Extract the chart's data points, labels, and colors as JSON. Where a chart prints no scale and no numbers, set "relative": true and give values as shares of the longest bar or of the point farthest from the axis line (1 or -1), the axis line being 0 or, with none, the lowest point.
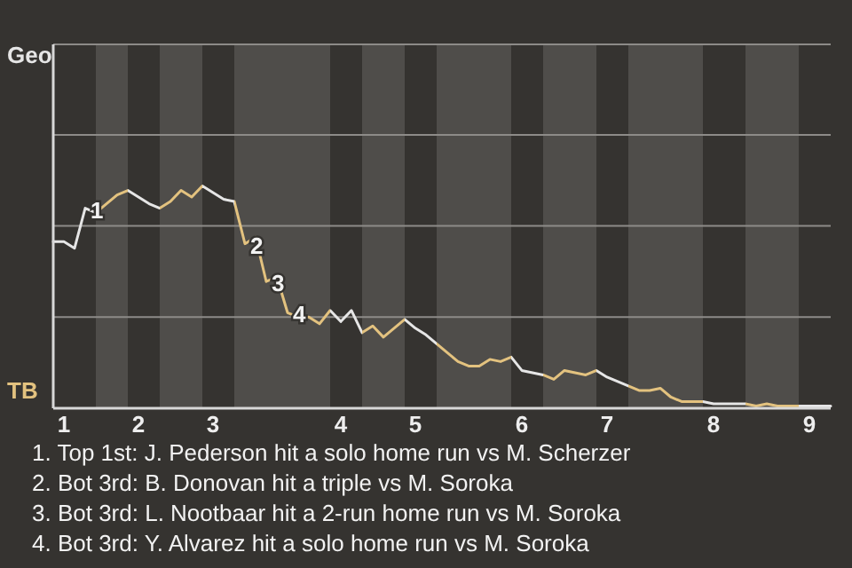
{
  "chart_data": {
    "type": "line",
    "relative": true,
    "categories": [
      null,
      "1",
      null,
      null,
      null,
      null,
      null,
      null,
      "2",
      null,
      null,
      null,
      null,
      null,
      null,
      "3",
      null,
      null,
      null,
      null,
      null,
      null,
      null,
      null,
      null,
      null,
      null,
      "4",
      null,
      null,
      null,
      null,
      null,
      null,
      "5",
      null,
      null,
      null,
      null,
      null,
      null,
      null,
      null,
      null,
      "6",
      null,
      null,
      null,
      null,
      null,
      null,
      null,
      "7",
      null,
      null,
      null,
      null,
      null,
      null,
      null,
      null,
      null,
      "8",
      null,
      null,
      null,
      null,
      null,
      null,
      null,
      null,
      "9",
      null,
      null
    ],
    "marker": "none",
    "line_style": "solid",
    "ref_lines": [
      {
        "axis": "y",
        "value": 0.41,
        "color": "#8d8b88"
      },
      {
        "axis": "y",
        "value": 0.82,
        "color": "#8d8b88"
      },
      {
        "axis": "y",
        "value": 1.23,
        "color": "#8d8b88"
      }
    ],
    "values": [
      0.75,
      0.75,
      0.72,
      0.9,
      0.88,
      0.92,
      0.96,
      0.98,
      0.95,
      0.92,
      0.9,
      0.93,
      0.98,
      0.95,
      1,
      0.97,
      0.94,
      0.93,
      0.74,
      0.77,
      0.57,
      0.59,
      0.43,
      0.41,
      0.41,
      0.38,
      0.44,
      0.39,
      0.44,
      0.34,
      0.37,
      0.32,
      0.36,
      0.4,
      0.36,
      0.33,
      0.29,
      0.25,
      0.21,
      0.19,
      0.19,
      0.22,
      0.21,
      0.23,
      0.17,
      0.16,
      0.15,
      0.13,
      0.17,
      0.16,
      0.15,
      0.17,
      0.14,
      0.12,
      0.1,
      0.08,
      0.08,
      0.09,
      0.05,
      0.03,
      0.03,
      0.03,
      0.02,
      0.02,
      0.02,
      0.02,
      0.01,
      0.02,
      0.01,
      0.01,
      0.01,
      0.01,
      0.01,
      0.01
    ],
    "colors": [
      "#e6e6e6",
      "#e6e6e6",
      "#e6e6e6",
      "#e6e6e6",
      "#e6e6e6",
      "#e3c27f",
      "#e3c27f",
      "#e3c27f",
      "#e6e6e6",
      "#e6e6e6",
      "#e6e6e6",
      "#e3c27f",
      "#e3c27f",
      "#e3c27f",
      "#e3c27f",
      "#e6e6e6",
      "#e6e6e6",
      "#e6e6e6",
      "#e3c27f",
      "#e3c27f",
      "#e3c27f",
      "#e3c27f",
      "#e3c27f",
      "#e3c27f",
      "#e3c27f",
      "#e3c27f",
      "#e3c27f",
      "#e6e6e6",
      "#e6e6e6",
      "#e6e6e6",
      "#e3c27f",
      "#e3c27f",
      "#e3c27f",
      "#e3c27f",
      "#e6e6e6",
      "#e6e6e6",
      "#e6e6e6",
      "#e3c27f",
      "#e3c27f",
      "#e3c27f",
      "#e3c27f",
      "#e3c27f",
      "#e3c27f",
      "#e3c27f",
      "#e6e6e6",
      "#e6e6e6",
      "#e6e6e6",
      "#e3c27f",
      "#e3c27f",
      "#e3c27f",
      "#e3c27f",
      "#e3c27f",
      "#e6e6e6",
      "#e6e6e6",
      "#e6e6e6",
      "#e3c27f",
      "#e3c27f",
      "#e3c27f",
      "#e3c27f",
      "#e3c27f",
      "#e3c27f",
      "#e3c27f",
      "#e6e6e6",
      "#e6e6e6",
      "#e6e6e6",
      "#e6e6e6",
      "#e3c27f",
      "#e3c27f",
      "#e3c27f",
      "#e3c27f",
      "#e3c27f",
      "#e6e6e6",
      "#e6e6e6",
      "#e6e6e6"
    ],
    "annotations": [
      "Geo",
      "TB",
      {
        "text": "1",
        "y": 0.9
      },
      {
        "text": "2",
        "y": 0.74
      },
      {
        "text": "3",
        "y": 0.57
      },
      {
        "text": "4",
        "y": 0.43
      },
      "1. Top 1st: J. Pederson hit a solo home run vs M. Scherzer",
      "2. Bot 3rd: B. Donovan hit a triple vs M. Soroka",
      "3. Bot 3rd: L. Nootbaar hit a 2-run home run vs M. Soroka",
      "4. Bot 3rd: Y. Alvarez hit a solo home run vs M. Soroka"
    ]
  }
}
